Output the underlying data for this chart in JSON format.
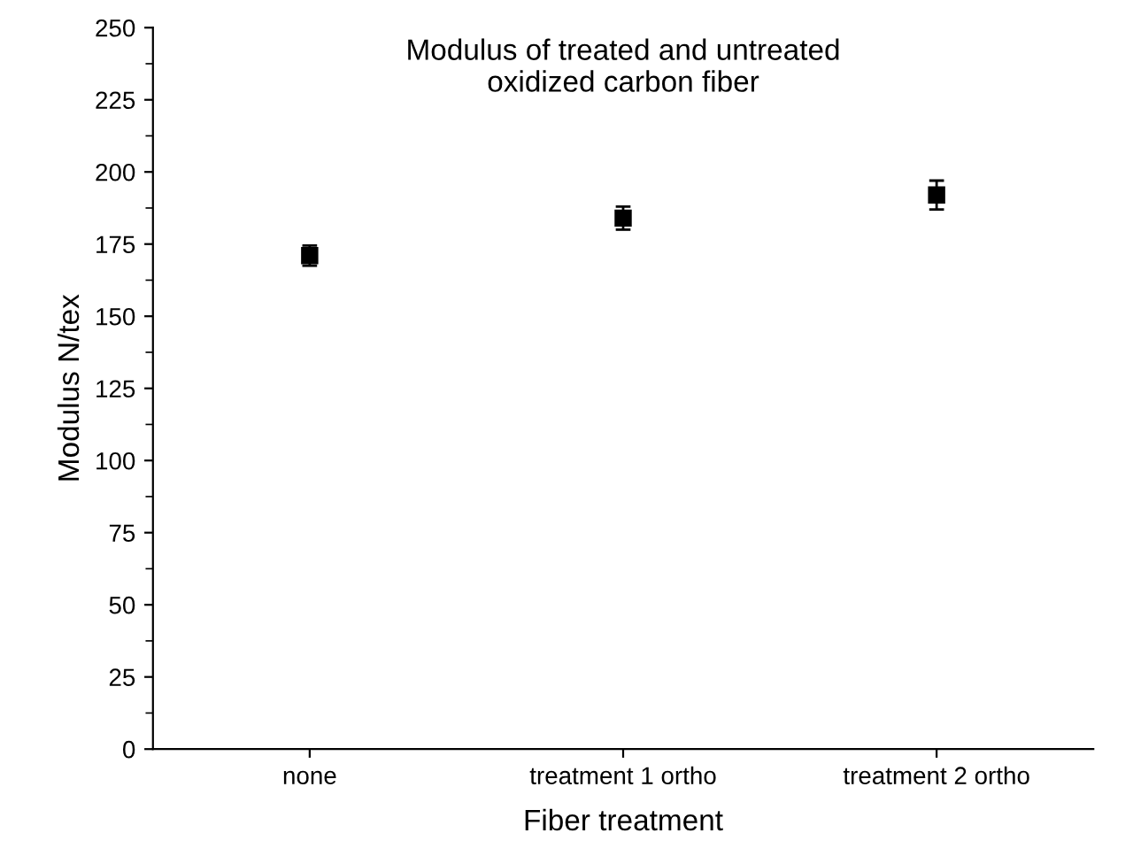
{
  "chart_data": {
    "type": "scatter",
    "title": "Modulus of treated and untreated\noxidized carbon fiber",
    "xlabel": "Fiber treatment",
    "ylabel": "Modulus N/tex",
    "categories": [
      "none",
      "treatment 1 ortho",
      "treatment 2 ortho"
    ],
    "series": [
      {
        "color": "#000000",
        "values": [
          171,
          184,
          192
        ],
        "errors": [
          3.5,
          4,
          5
        ]
      }
    ],
    "ylim": [
      0,
      250
    ],
    "yticks": [
      0,
      25,
      50,
      75,
      100,
      125,
      150,
      175,
      200,
      225,
      250
    ],
    "marker": "square",
    "grid": false,
    "legend": false
  }
}
